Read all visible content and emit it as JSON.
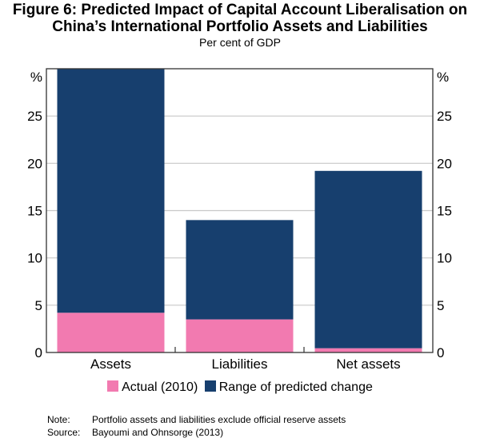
{
  "chart_data": {
    "type": "bar",
    "stacked": true,
    "title": "Figure 6: Predicted Impact of Capital Account Liberalisation on",
    "title_line2": "China’s International Portfolio Assets and Liabilities",
    "subtitle": "Per cent of GDP",
    "categories": [
      "Assets",
      "Liabilities",
      "Net assets"
    ],
    "series": [
      {
        "name": "Actual (2010)",
        "color": "#f27ab0",
        "values": [
          4.2,
          3.5,
          0.45
        ]
      },
      {
        "name": "Range of predicted change",
        "color": "#173f6e",
        "values": [
          25.8,
          10.5,
          18.75
        ]
      }
    ],
    "totals": [
      30,
      14,
      19.2
    ],
    "ylabel_left": "%",
    "ylabel_right": "%",
    "ylim": [
      0,
      30
    ],
    "yticks": [
      0,
      5,
      10,
      15,
      20,
      25
    ],
    "grid": true,
    "legend_position": "bottom"
  },
  "notes": {
    "note_label": "Note:",
    "note_text": "Portfolio assets and liabilities exclude official reserve assets",
    "source_label": "Source:",
    "source_text": "Bayoumi and Ohnsorge (2013)"
  }
}
